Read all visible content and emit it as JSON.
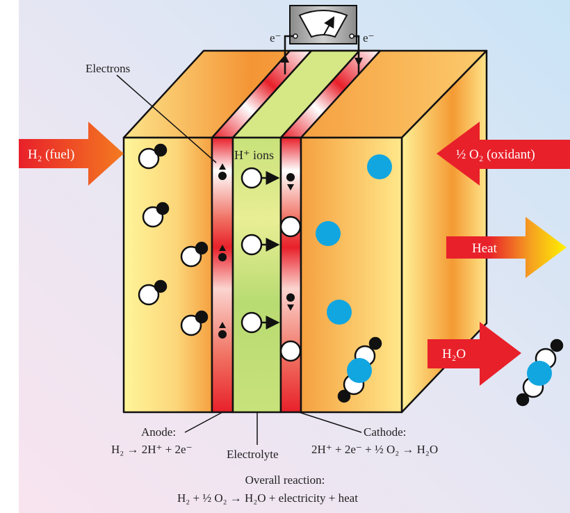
{
  "labels": {
    "electrons": "Electrons",
    "e_left": "e⁻",
    "e_right": "e⁻",
    "h_ions": "H⁺ ions",
    "anode": "Anode:",
    "anode_eq": "H₂ → 2H⁺ + 2e⁻",
    "electrolyte": "Electrolyte",
    "cathode": "Cathode:",
    "cathode_eq": "2H⁺ + 2e⁻ + ½ O₂ → H₂O",
    "overall": "Overall reaction:",
    "overall_eq": "H₂ + ½ O₂ → H₂O + electricity + heat"
  },
  "arrows": {
    "fuel": "H₂ (fuel)",
    "oxidant": "½ O₂ (oxidant)",
    "heat": "Heat",
    "water": "H₂O"
  },
  "colors": {
    "arrow_red": "#e8202a",
    "hydrogen_white": "#ffffff",
    "electron_black": "#111111",
    "oxygen_blue": "#12a6e0",
    "electrolyte_green": "#c5e07a",
    "compartment_orange": "#f5a040",
    "compartment_yellow": "#fff59a"
  },
  "icons": {
    "meter": "ammeter-icon"
  }
}
